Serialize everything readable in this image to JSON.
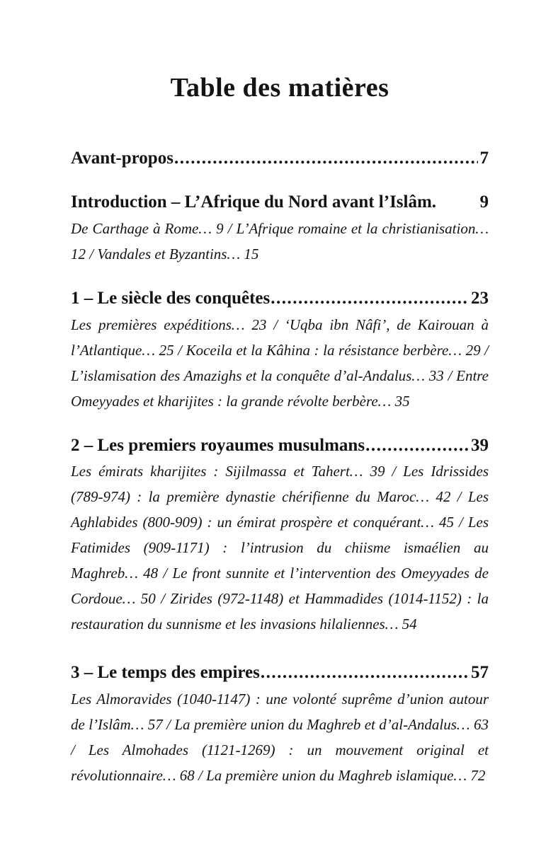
{
  "document": {
    "title": "Table des matières",
    "colors": {
      "ink": "#141414",
      "paper": "#ffffff"
    },
    "toc": {
      "entries": [
        {
          "label": "Avant-propos",
          "dots": true,
          "page": "7",
          "description": ""
        },
        {
          "label": "Introduction – L’Afrique du Nord avant l’Islâm.",
          "dots": false,
          "page": "9",
          "description": "De Carthage à Rome… 9 / L’Afrique romaine et la christianisation… 12 / Vandales et Byzantins… 15"
        },
        {
          "label": "1 – Le siècle des conquêtes",
          "dots": true,
          "page": "23",
          "description": "Les premières expéditions… 23 / ‘Uqba ibn Nâfi’, de Kairouan à l’Atlantique… 25 / Koceila et la Kâhina : la résistance berbère… 29 / L’islamisation des Amazighs et la conquête d’al-Andalus… 33 / Entre Omeyyades et kharijites : la grande révolte berbère… 35"
        },
        {
          "label": "2 – Les premiers royaumes musulmans",
          "dots": true,
          "page": "39",
          "description": "Les émirats kharijites : Sijilmassa et Tahert… 39 / Les Idrissides (789-974) : la première dynastie chérifienne du Maroc… 42 / Les Aghlabides (800-909) : un émirat prospère et conquérant… 45 / Les Fatimides (909-1171) : l’intrusion du chiisme ismaélien au Maghreb… 48 / Le front sunnite et l’intervention des Omeyyades de Cordoue… 50 / Zirides (972-1148) et Hammadides (1014-1152) : la restauration du sunnisme et les invasions hilaliennes… 54"
        },
        {
          "label": "3 – Le temps des empires",
          "dots": true,
          "page": "57",
          "description": "Les Almoravides (1040-1147) : une volonté suprême d’union autour de l’Islâm… 57 / La première union du Maghreb et d’al-Andalus… 63 / Les Almohades (1121-1269) : un mouvement original et révolutionnaire… 68 / La première union du Maghreb islamique… 72"
        }
      ]
    }
  }
}
